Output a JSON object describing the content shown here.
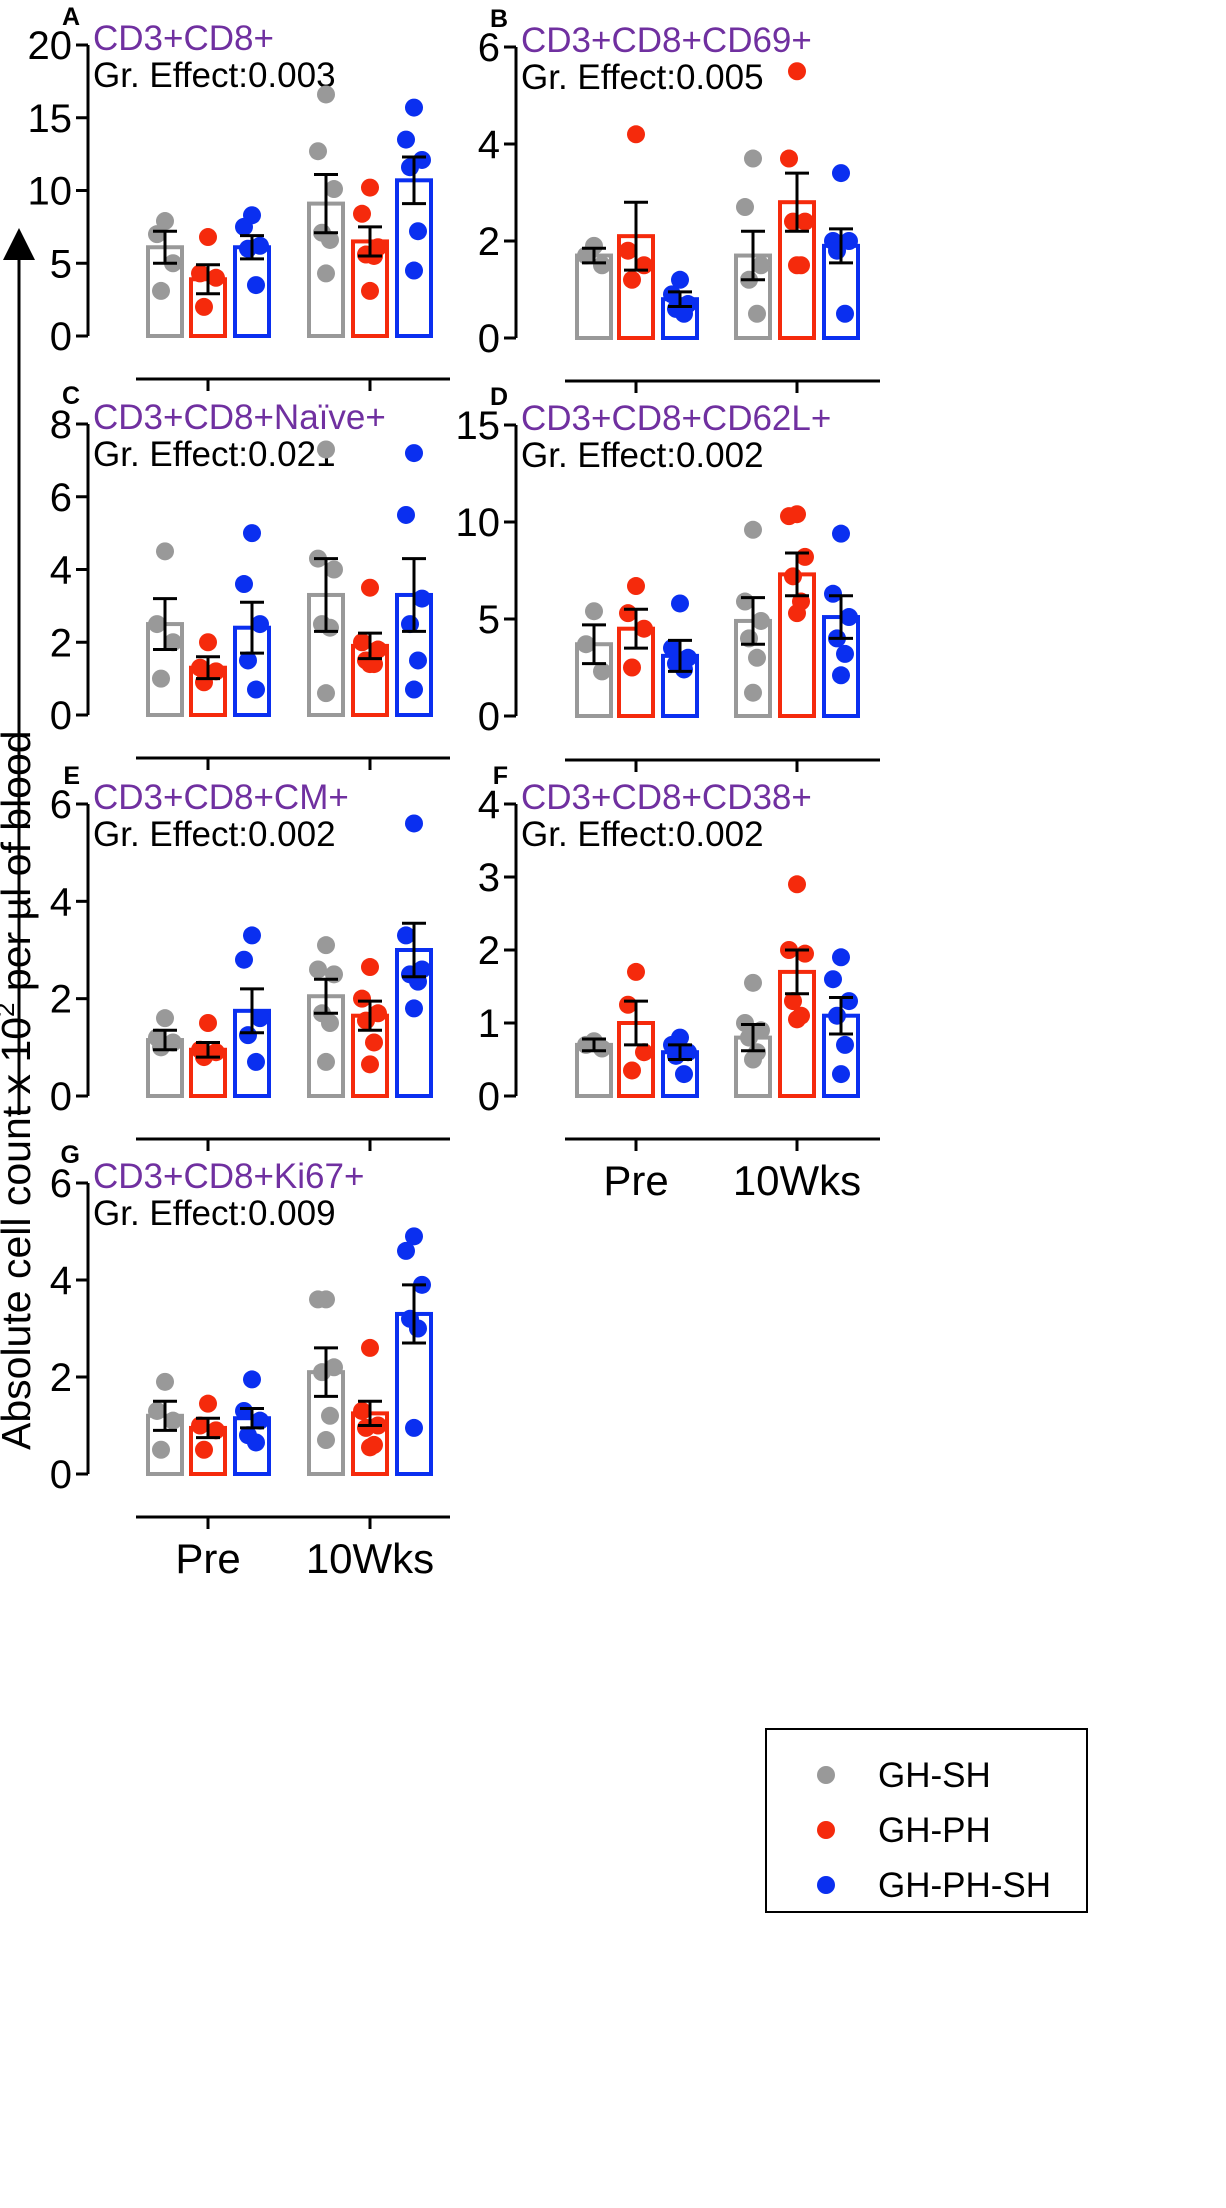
{
  "figure": {
    "y_axis_label_pre": "Absolute cell count x 10",
    "y_axis_label_sup": "2",
    "y_axis_label_post": " per µl of blood"
  },
  "legend": [
    {
      "label": "GH-SH",
      "color": "#999999"
    },
    {
      "label": "GH-PH",
      "color": "#f52a0c"
    },
    {
      "label": "GH-PH-SH",
      "color": "#0a2ff0"
    }
  ],
  "chart_data": [
    {
      "panel": "A",
      "type": "bar",
      "title": "CD3+CD8+",
      "effect": "Gr. Effect:0.003",
      "categories": [
        "Pre",
        "10Wks"
      ],
      "show_category_labels": false,
      "ylim": [
        0,
        20
      ],
      "yticks": [
        0,
        5,
        10,
        15,
        20
      ],
      "series": [
        {
          "name": "GH-SH",
          "means": [
            6.1,
            9.1
          ],
          "sems": [
            1.1,
            2.0
          ],
          "points": [
            [
              7.9,
              7.0,
              5.0,
              3.1
            ],
            [
              16.6,
              12.7,
              10.1,
              7.1,
              6.6,
              4.3
            ]
          ]
        },
        {
          "name": "GH-PH",
          "means": [
            3.9,
            6.5
          ],
          "sems": [
            1.0,
            1.0
          ],
          "points": [
            [
              6.8,
              4.3,
              4.0,
              2.0
            ],
            [
              10.2,
              8.4,
              6.1,
              5.6,
              5.5,
              3.1
            ]
          ]
        },
        {
          "name": "GH-PH-SH",
          "means": [
            6.1,
            10.7
          ],
          "sems": [
            0.8,
            1.6
          ],
          "points": [
            [
              8.3,
              7.5,
              6.2,
              6.0,
              3.5
            ],
            [
              15.7,
              13.5,
              12.1,
              11.6,
              7.2,
              4.5
            ]
          ]
        }
      ]
    },
    {
      "panel": "B",
      "type": "bar",
      "title": "CD3+CD8+CD69+",
      "effect": "Gr. Effect:0.005",
      "categories": [
        "Pre",
        "10Wks"
      ],
      "show_category_labels": false,
      "ylim": [
        0,
        6
      ],
      "yticks": [
        0,
        2,
        4,
        6
      ],
      "series": [
        {
          "name": "GH-SH",
          "means": [
            1.7,
            1.7
          ],
          "sems": [
            0.15,
            0.5
          ],
          "points": [
            [
              1.9,
              1.7,
              1.5
            ],
            [
              3.7,
              2.7,
              1.5,
              1.2,
              0.5
            ]
          ]
        },
        {
          "name": "GH-PH",
          "means": [
            2.1,
            2.8
          ],
          "sems": [
            0.7,
            0.6
          ],
          "points": [
            [
              4.2,
              1.8,
              1.5,
              1.2
            ],
            [
              5.5,
              3.7,
              2.4,
              2.4,
              1.5,
              1.5
            ]
          ]
        },
        {
          "name": "GH-PH-SH",
          "means": [
            0.8,
            1.9
          ],
          "sems": [
            0.15,
            0.35
          ],
          "points": [
            [
              1.2,
              0.9,
              0.7,
              0.6,
              0.5
            ],
            [
              3.4,
              2.0,
              2.0,
              1.8,
              0.5
            ]
          ]
        }
      ]
    },
    {
      "panel": "C",
      "type": "bar",
      "title": "CD3+CD8+Naïve+",
      "effect": "Gr. Effect:0.021",
      "categories": [
        "Pre",
        "10Wks"
      ],
      "show_category_labels": false,
      "ylim": [
        0,
        8
      ],
      "yticks": [
        0,
        2,
        4,
        6,
        8
      ],
      "series": [
        {
          "name": "GH-SH",
          "means": [
            2.5,
            3.3
          ],
          "sems": [
            0.7,
            1.0
          ],
          "points": [
            [
              4.5,
              2.5,
              2.0,
              1.0
            ],
            [
              7.3,
              4.3,
              4.0,
              2.5,
              2.4,
              0.6
            ]
          ]
        },
        {
          "name": "GH-PH",
          "means": [
            1.3,
            1.9
          ],
          "sems": [
            0.3,
            0.35
          ],
          "points": [
            [
              2.0,
              1.3,
              1.2,
              0.9
            ],
            [
              3.5,
              2.0,
              1.8,
              1.5,
              1.4,
              1.4
            ]
          ]
        },
        {
          "name": "GH-PH-SH",
          "means": [
            2.4,
            3.3
          ],
          "sems": [
            0.7,
            1.0
          ],
          "points": [
            [
              5.0,
              3.6,
              2.5,
              1.5,
              0.7
            ],
            [
              7.2,
              5.5,
              3.2,
              2.5,
              1.5,
              0.7
            ]
          ]
        }
      ]
    },
    {
      "panel": "D",
      "type": "bar",
      "title": "CD3+CD8+CD62L+",
      "effect": "Gr. Effect:0.002",
      "categories": [
        "Pre",
        "10Wks"
      ],
      "show_category_labels": false,
      "ylim": [
        0,
        15
      ],
      "yticks": [
        0,
        5,
        10,
        15
      ],
      "series": [
        {
          "name": "GH-SH",
          "means": [
            3.7,
            4.9
          ],
          "sems": [
            1.0,
            1.2
          ],
          "points": [
            [
              5.4,
              3.7,
              2.3
            ],
            [
              9.6,
              5.9,
              4.9,
              4.0,
              3.0,
              1.2
            ]
          ]
        },
        {
          "name": "GH-PH",
          "means": [
            4.5,
            7.3
          ],
          "sems": [
            1.0,
            1.1
          ],
          "points": [
            [
              6.7,
              5.3,
              4.5,
              2.5
            ],
            [
              10.4,
              10.3,
              8.2,
              7.2,
              5.9,
              5.3
            ]
          ]
        },
        {
          "name": "GH-PH-SH",
          "means": [
            3.1,
            5.1
          ],
          "sems": [
            0.8,
            1.1
          ],
          "points": [
            [
              5.8,
              3.5,
              3.0,
              2.7,
              2.4
            ],
            [
              9.4,
              6.3,
              5.1,
              4.0,
              3.2,
              2.1
            ]
          ]
        }
      ]
    },
    {
      "panel": "E",
      "type": "bar",
      "title": "CD3+CD8+CM+",
      "effect": "Gr. Effect:0.002",
      "categories": [
        "Pre",
        "10Wks"
      ],
      "show_category_labels": false,
      "ylim": [
        0,
        6
      ],
      "yticks": [
        0,
        2,
        4,
        6
      ],
      "series": [
        {
          "name": "GH-SH",
          "means": [
            1.15,
            2.05
          ],
          "sems": [
            0.2,
            0.35
          ],
          "points": [
            [
              1.6,
              1.2,
              1.1,
              1.0
            ],
            [
              3.1,
              2.6,
              2.5,
              1.7,
              1.5,
              0.7
            ]
          ]
        },
        {
          "name": "GH-PH",
          "means": [
            0.95,
            1.65
          ],
          "sems": [
            0.15,
            0.3
          ],
          "points": [
            [
              1.5,
              0.95,
              0.9,
              0.8
            ],
            [
              2.65,
              2.0,
              1.7,
              1.55,
              1.1,
              0.65
            ]
          ]
        },
        {
          "name": "GH-PH-SH",
          "means": [
            1.75,
            3.0
          ],
          "sems": [
            0.45,
            0.55
          ],
          "points": [
            [
              3.3,
              2.8,
              1.6,
              1.25,
              0.7
            ],
            [
              5.6,
              3.3,
              2.6,
              2.5,
              2.35,
              1.8
            ]
          ]
        }
      ]
    },
    {
      "panel": "F",
      "type": "bar",
      "title": "CD3+CD8+CD38+",
      "effect": "Gr. Effect:0.002",
      "categories": [
        "Pre",
        "10Wks"
      ],
      "show_category_labels": true,
      "ylim": [
        0,
        4
      ],
      "yticks": [
        0,
        1,
        2,
        3,
        4
      ],
      "series": [
        {
          "name": "GH-SH",
          "means": [
            0.7,
            0.8
          ],
          "sems": [
            0.08,
            0.18
          ],
          "points": [
            [
              0.75,
              0.7,
              0.65
            ],
            [
              1.55,
              1.0,
              0.9,
              0.8,
              0.6,
              0.5
            ]
          ]
        },
        {
          "name": "GH-PH",
          "means": [
            1.0,
            1.7
          ],
          "sems": [
            0.3,
            0.3
          ],
          "points": [
            [
              1.7,
              1.25,
              0.6,
              0.35
            ],
            [
              2.9,
              2.0,
              1.95,
              1.3,
              1.1,
              1.05
            ]
          ]
        },
        {
          "name": "GH-PH-SH",
          "means": [
            0.6,
            1.1
          ],
          "sems": [
            0.1,
            0.25
          ],
          "points": [
            [
              0.8,
              0.7,
              0.6,
              0.55,
              0.3
            ],
            [
              1.9,
              1.6,
              1.3,
              1.1,
              0.7,
              0.3
            ]
          ]
        }
      ]
    },
    {
      "panel": "G",
      "type": "bar",
      "title": "CD3+CD8+Ki67+",
      "effect": "Gr. Effect:0.009",
      "categories": [
        "Pre",
        "10Wks"
      ],
      "show_category_labels": true,
      "ylim": [
        0,
        6
      ],
      "yticks": [
        0,
        2,
        4,
        6
      ],
      "series": [
        {
          "name": "GH-SH",
          "means": [
            1.2,
            2.1
          ],
          "sems": [
            0.3,
            0.5
          ],
          "points": [
            [
              1.9,
              1.3,
              1.1,
              0.5
            ],
            [
              3.6,
              3.6,
              2.2,
              2.1,
              1.2,
              0.7
            ]
          ]
        },
        {
          "name": "GH-PH",
          "means": [
            0.95,
            1.25
          ],
          "sems": [
            0.2,
            0.25
          ],
          "points": [
            [
              1.45,
              1.0,
              0.9,
              0.5
            ],
            [
              2.6,
              1.3,
              1.0,
              0.95,
              0.6,
              0.55
            ]
          ]
        },
        {
          "name": "GH-PH-SH",
          "means": [
            1.15,
            3.3
          ],
          "sems": [
            0.2,
            0.6
          ],
          "points": [
            [
              1.95,
              1.3,
              1.1,
              0.8,
              0.65
            ],
            [
              4.9,
              4.6,
              3.9,
              3.2,
              3.0,
              0.95
            ]
          ]
        }
      ]
    }
  ]
}
